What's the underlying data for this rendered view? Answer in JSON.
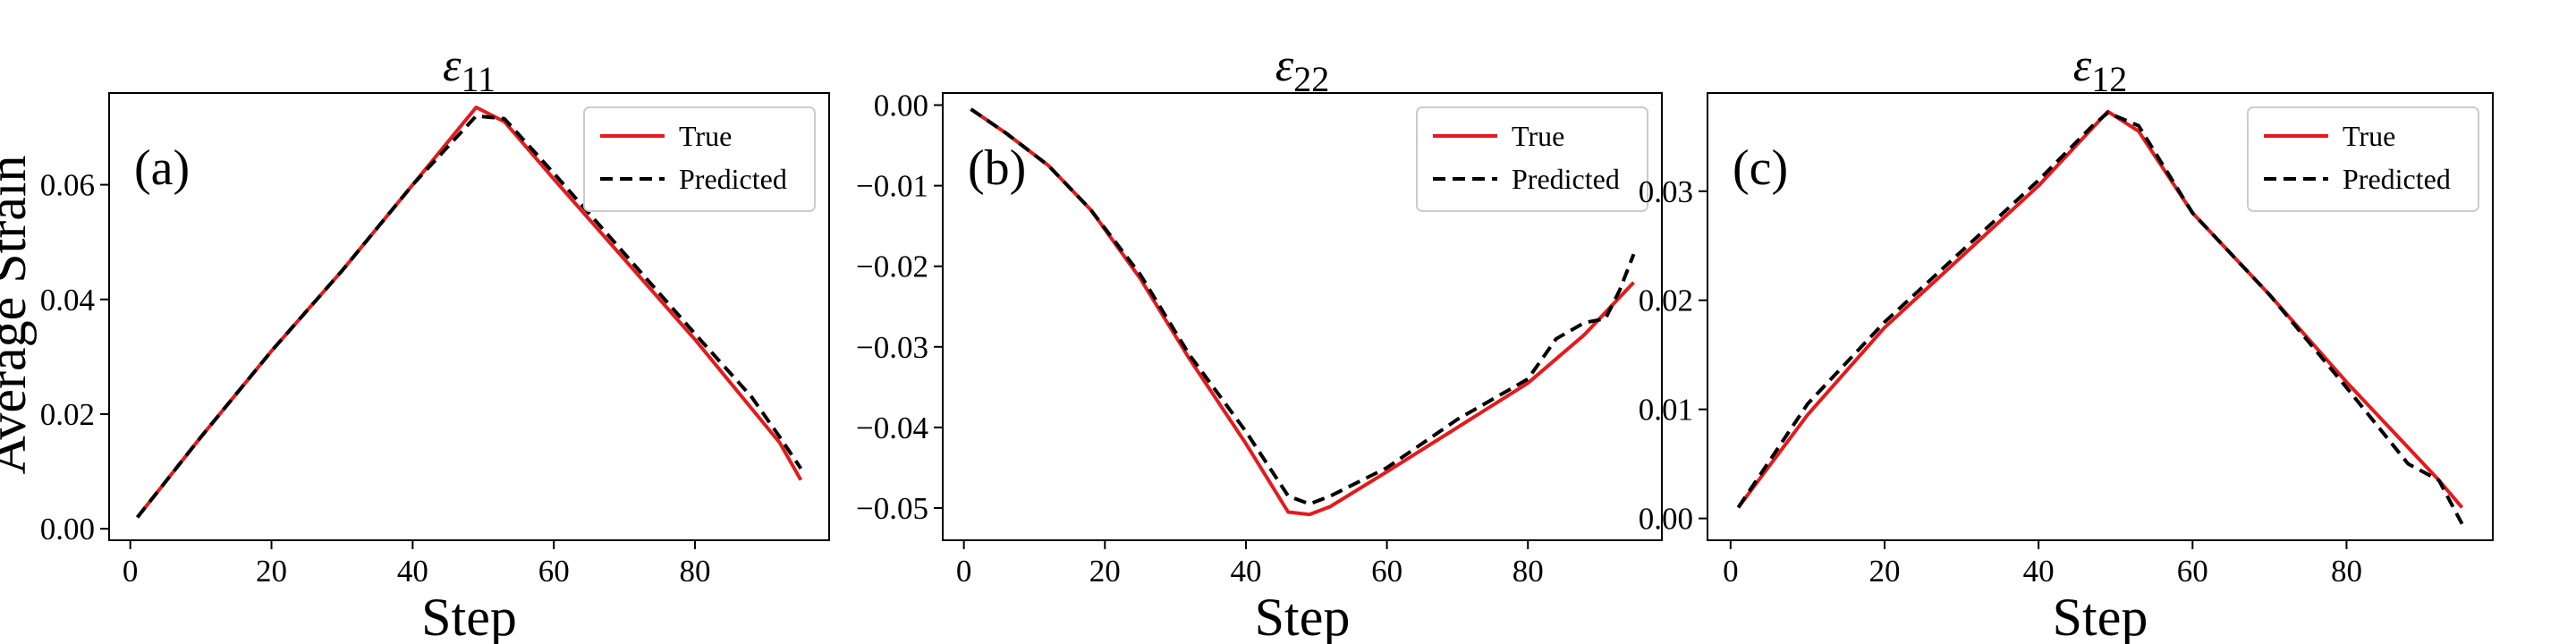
{
  "figure": {
    "ylabel": "Average Strain"
  },
  "chart_data": [
    {
      "type": "line",
      "title": "ε11",
      "title_main": "ε",
      "title_sub": "11",
      "panel_label": "(a)",
      "xlabel": "Step",
      "ylabel": "Average Strain",
      "xlim": [
        -3,
        99
      ],
      "ylim": [
        -0.002,
        0.076
      ],
      "xticks": [
        0,
        20,
        40,
        60,
        80
      ],
      "yticks": [
        0.0,
        0.02,
        0.04,
        0.06
      ],
      "ytick_labels": [
        "0.00",
        "0.02",
        "0.04",
        "0.06"
      ],
      "grid": false,
      "legend_position": "top-right",
      "series": [
        {
          "name": "True",
          "style": "solid",
          "color": "#e41a1c",
          "x": [
            1,
            10,
            20,
            30,
            40,
            46,
            49,
            53,
            60,
            70,
            80,
            88,
            92,
            95
          ],
          "y": [
            0.002,
            0.016,
            0.031,
            0.045,
            0.06,
            0.069,
            0.0735,
            0.071,
            0.061,
            0.047,
            0.033,
            0.021,
            0.015,
            0.0085
          ]
        },
        {
          "name": "Predicted",
          "style": "dashed",
          "color": "#000000",
          "x": [
            1,
            10,
            20,
            30,
            40,
            46,
            49,
            53,
            60,
            70,
            80,
            88,
            92,
            95
          ],
          "y": [
            0.002,
            0.016,
            0.031,
            0.045,
            0.06,
            0.068,
            0.072,
            0.0715,
            0.062,
            0.048,
            0.034,
            0.023,
            0.016,
            0.0105
          ]
        }
      ]
    },
    {
      "type": "line",
      "title": "ε22",
      "title_main": "ε",
      "title_sub": "22",
      "panel_label": "(b)",
      "xlabel": "Step",
      "xlim": [
        -3,
        99
      ],
      "ylim": [
        -0.054,
        0.0015
      ],
      "xticks": [
        0,
        20,
        40,
        60,
        80
      ],
      "yticks": [
        0.0,
        -0.01,
        -0.02,
        -0.03,
        -0.04,
        -0.05
      ],
      "ytick_labels": [
        "0.00",
        "−0.01",
        "−0.02",
        "−0.03",
        "−0.04",
        "−0.05"
      ],
      "grid": false,
      "legend_position": "top-right",
      "series": [
        {
          "name": "True",
          "style": "solid",
          "color": "#e41a1c",
          "x": [
            1,
            6,
            12,
            18,
            25,
            32,
            40,
            46,
            49,
            52,
            60,
            70,
            80,
            88,
            95
          ],
          "y": [
            -0.0005,
            -0.0035,
            -0.0075,
            -0.013,
            -0.0215,
            -0.0315,
            -0.042,
            -0.0505,
            -0.0508,
            -0.0498,
            -0.0455,
            -0.04,
            -0.0345,
            -0.0285,
            -0.022
          ]
        },
        {
          "name": "Predicted",
          "style": "dashed",
          "color": "#000000",
          "x": [
            1,
            6,
            12,
            18,
            25,
            32,
            40,
            46,
            49,
            52,
            60,
            70,
            80,
            84,
            88,
            91,
            93,
            95
          ],
          "y": [
            -0.0005,
            -0.0035,
            -0.0075,
            -0.013,
            -0.021,
            -0.031,
            -0.0405,
            -0.0485,
            -0.0495,
            -0.0485,
            -0.045,
            -0.039,
            -0.034,
            -0.029,
            -0.027,
            -0.0265,
            -0.023,
            -0.0185
          ]
        }
      ]
    },
    {
      "type": "line",
      "title": "ε12",
      "title_main": "ε",
      "title_sub": "12",
      "panel_label": "(c)",
      "xlabel": "Step",
      "xlim": [
        -3,
        99
      ],
      "ylim": [
        -0.002,
        0.039
      ],
      "xticks": [
        0,
        20,
        40,
        60,
        80
      ],
      "yticks": [
        0.0,
        0.01,
        0.02,
        0.03
      ],
      "ytick_labels": [
        "0.00",
        "0.01",
        "0.02",
        "0.03"
      ],
      "grid": false,
      "legend_position": "top-right",
      "series": [
        {
          "name": "True",
          "style": "solid",
          "color": "#e41a1c",
          "x": [
            1,
            10,
            20,
            30,
            40,
            49,
            53,
            60,
            70,
            80,
            88,
            92,
            95
          ],
          "y": [
            0.001,
            0.0095,
            0.0175,
            0.024,
            0.0305,
            0.0373,
            0.0355,
            0.028,
            0.0205,
            0.0125,
            0.0065,
            0.0035,
            0.001
          ]
        },
        {
          "name": "Predicted",
          "style": "dashed",
          "color": "#000000",
          "x": [
            1,
            10,
            20,
            30,
            40,
            47,
            49,
            53,
            60,
            70,
            80,
            88,
            92,
            95
          ],
          "y": [
            0.001,
            0.0105,
            0.018,
            0.0245,
            0.031,
            0.036,
            0.0372,
            0.036,
            0.028,
            0.0205,
            0.012,
            0.005,
            0.0035,
            -0.0005
          ]
        }
      ]
    }
  ]
}
